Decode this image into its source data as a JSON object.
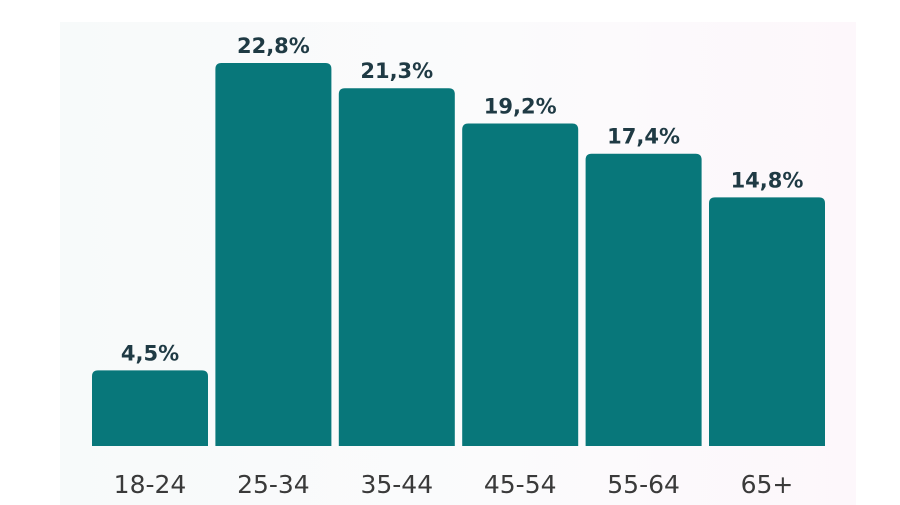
{
  "chart_data": {
    "type": "bar",
    "title": "",
    "xlabel": "",
    "ylabel": "",
    "categories": [
      "18-24",
      "25-34",
      "35-44",
      "45-54",
      "55-64",
      "65+"
    ],
    "values": [
      4.5,
      22.8,
      21.3,
      19.2,
      17.4,
      14.8
    ],
    "value_labels": [
      "4,5%",
      "22,8%",
      "21,3%",
      "19,2%",
      "17,4%",
      "14,8%"
    ],
    "ylim": [
      0,
      22.8
    ],
    "grid": false,
    "colors": {
      "bar": "#08777a",
      "value_text": "#1f3a44",
      "tick_text": "#3a3a3a",
      "background": "#f8fafa"
    }
  }
}
